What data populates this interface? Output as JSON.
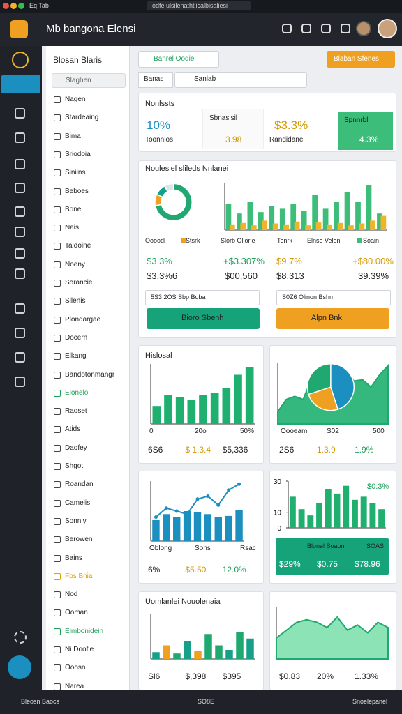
{
  "topbar": {
    "tab": "Eq Tab",
    "url": "odfe ulsilenathtlicalbisaliesi",
    "app_title": "Mb bangona Elensi"
  },
  "sidebar": {
    "title": "Blosan Blaris",
    "search": "Slaghen",
    "items": [
      {
        "label": "Nagen"
      },
      {
        "label": "Stardeaing"
      },
      {
        "label": "Bima"
      },
      {
        "label": "Sriodoia"
      },
      {
        "label": "Siniins"
      },
      {
        "label": "Beboes"
      },
      {
        "label": "Bone"
      },
      {
        "label": "Nais"
      },
      {
        "label": "Taldoine"
      },
      {
        "label": "Noeny"
      },
      {
        "label": "Sorancie"
      },
      {
        "label": "Sllenis"
      },
      {
        "label": "Plondargae"
      },
      {
        "label": "Docern"
      },
      {
        "label": "Elkang"
      },
      {
        "label": "Bandotonmangr"
      },
      {
        "label": "Elonelo",
        "color": "#1e9e5a"
      },
      {
        "label": "Raoset"
      },
      {
        "label": "Atids"
      },
      {
        "label": "Daofey"
      },
      {
        "label": "Shgot"
      },
      {
        "label": "Roandan"
      },
      {
        "label": "Camelis"
      },
      {
        "label": "Sonniy"
      },
      {
        "label": "Berowen"
      },
      {
        "label": "Bains"
      },
      {
        "label": "Fbs Bnia",
        "color": "#e0a000"
      },
      {
        "label": "Nod"
      },
      {
        "label": "Ooman"
      },
      {
        "label": "Elmbonidein",
        "color": "#1e9e5a"
      },
      {
        "label": "Ni Doofie"
      },
      {
        "label": "Ooosn"
      },
      {
        "label": "Narea"
      }
    ]
  },
  "toolbar": {
    "select": "Banrel Oodie",
    "button": "Blaban Sfenes",
    "tab": "Banas",
    "search": "Sanlab"
  },
  "kpi": {
    "title": "Nonlssts",
    "main": "10%",
    "main_label": "Toonnlos",
    "box_label": "Sbnaslsil",
    "box_value": "3.98",
    "second": "$3.3%",
    "second_label": "Randidanel",
    "green_label": "Spnnrbl",
    "green_value": "4.3%"
  },
  "overview": {
    "title": "Noulesiel slileds Nnlanei",
    "donut": {
      "ylim": [
        0,
        100
      ],
      "layers": [
        {
          "type": "donut",
          "values": [
            72,
            10,
            10,
            8
          ],
          "colors": [
            "#1fa870",
            "#f0a020",
            "#16a08a",
            "#dfe3e6"
          ]
        }
      ]
    },
    "bars": {
      "ylim": [
        0,
        100
      ],
      "layers": [
        {
          "type": "grouped",
          "series": [
            {
              "color": "#3dbd7a",
              "values": [
                55,
                35,
                60,
                38,
                50,
                45,
                55,
                40,
                75,
                45,
                60,
                80,
                60,
                95,
                35
              ]
            },
            {
              "color": "#f0b429",
              "values": [
                12,
                15,
                10,
                20,
                14,
                12,
                18,
                10,
                16,
                12,
                15,
                10,
                14,
                20,
                30
              ]
            }
          ]
        }
      ]
    },
    "legend": [
      "Oooodl",
      "Stsrk",
      "Slorb Oliorle",
      "Tenrk",
      "Elnse Velen",
      "Soain"
    ],
    "stats": [
      "$3.3%",
      "$3,3%6",
      "+$3.307%",
      "$00,560",
      "$9.7%",
      "$8,313",
      "+$80.00%",
      "39.39%"
    ],
    "inputs": [
      "5S3 2OS Sbp Boba",
      "S0Z6 Olinon Bshn"
    ],
    "buttons": [
      "Bioro Sbenh",
      "Alpn Bnk"
    ]
  },
  "cards": [
    {
      "title": "Hislosal",
      "chart": {
        "ylim": [
          0,
          100
        ],
        "layers": [
          {
            "type": "bar",
            "color": "#1fb070",
            "values": [
              30,
              48,
              45,
              40,
              48,
              52,
              60,
              82,
              95
            ]
          }
        ]
      },
      "labels": [
        "0",
        "20o",
        "50%"
      ],
      "footer": [
        {
          "text": "6S6",
          "color": "#222"
        },
        {
          "text": "$ 1.3.4",
          "color": "#d49a00"
        },
        {
          "text": "$5,336",
          "color": "#222"
        }
      ]
    },
    {
      "chart": {
        "ylim": [
          0,
          100
        ],
        "layers": [
          {
            "type": "area",
            "color": "#1fa870",
            "fill": "#1fb070",
            "values": [
              20,
              40,
              45,
              40,
              75,
              50,
              65,
              55,
              85,
              70,
              72,
              60,
              80,
              95
            ]
          },
          {
            "type": "pie",
            "values": [
              45,
              25,
              30
            ],
            "colors": [
              "#1a8fc0",
              "#f0a020",
              "#1fa870"
            ]
          }
        ]
      },
      "labels": [
        "Oooeam",
        "S02",
        "500"
      ],
      "footer": [
        {
          "text": "2S6",
          "color": "#222"
        },
        {
          "text": "1.3.9",
          "color": "#d49a00"
        },
        {
          "text": "1.9%",
          "color": "#1e9e5a"
        }
      ]
    },
    {
      "chart": {
        "ylim": [
          0,
          100
        ],
        "layers": [
          {
            "type": "bar",
            "color": "#1a8fc0",
            "values": [
              35,
              45,
              40,
              50,
              48,
              45,
              40,
              42,
              52
            ]
          },
          {
            "type": "line",
            "color": "#1a8fc0",
            "markers": true,
            "values": [
              40,
              55,
              50,
              45,
              70,
              75,
              60,
              85,
              95
            ]
          }
        ]
      },
      "labels": [
        "Oblong",
        "Sons",
        "Rsac"
      ],
      "footer": [
        {
          "text": "6%",
          "color": "#222"
        },
        {
          "text": "$5.50",
          "color": "#d49a00"
        },
        {
          "text": "12.0%",
          "color": "#1e9e5a"
        }
      ]
    },
    {
      "chart": {
        "ylim": [
          0,
          30
        ],
        "yticks": [
          30,
          10,
          0
        ],
        "layers": [
          {
            "type": "bar",
            "color": "#1fb070",
            "values": [
              20,
              12,
              8,
              16,
              25,
              22,
              27,
              18,
              20,
              16,
              12
            ]
          }
        ]
      },
      "note": "$0.3%",
      "banner": [
        "Blonel Soaon",
        "SOAS"
      ],
      "footer": [
        {
          "text": "$29%",
          "color": "#fff"
        },
        {
          "text": "$0.75",
          "color": "#fff"
        },
        {
          "text": "$78.96",
          "color": "#fff"
        }
      ]
    },
    {
      "title": "Uomlanlei Nouolenaia",
      "chart": {
        "ylim": [
          0,
          100
        ],
        "layers": [
          {
            "type": "bar",
            "colors": [
              "#16a08a",
              "#f0a020",
              "#1fa870",
              "#16a08a",
              "#f0a020",
              "#1fa870",
              "#1fa870",
              "#16a08a",
              "#1fa870",
              "#16a08a"
            ],
            "values": [
              15,
              30,
              12,
              40,
              18,
              55,
              30,
              20,
              60,
              45
            ]
          }
        ]
      },
      "footer": [
        {
          "text": "Sl6",
          "color": "#222"
        },
        {
          "text": "$,398",
          "color": "#222"
        },
        {
          "text": "$395",
          "color": "#222"
        }
      ]
    },
    {
      "chart": {
        "ylim": [
          0,
          100
        ],
        "layers": [
          {
            "type": "area",
            "color": "#1fa870",
            "fill": "#7ee0ae",
            "values": [
              40,
              55,
              70,
              75,
              70,
              60,
              80,
              55,
              65,
              50,
              70,
              60
            ]
          }
        ]
      },
      "footer": [
        {
          "text": "$0.83",
          "color": "#222"
        },
        {
          "text": "20%",
          "color": "#222"
        },
        {
          "text": "1.33%",
          "color": "#222"
        }
      ]
    }
  ],
  "bottombar": {
    "left": "Bleosn Baocs",
    "center": "SO8E",
    "right": "Snoelepanel"
  }
}
